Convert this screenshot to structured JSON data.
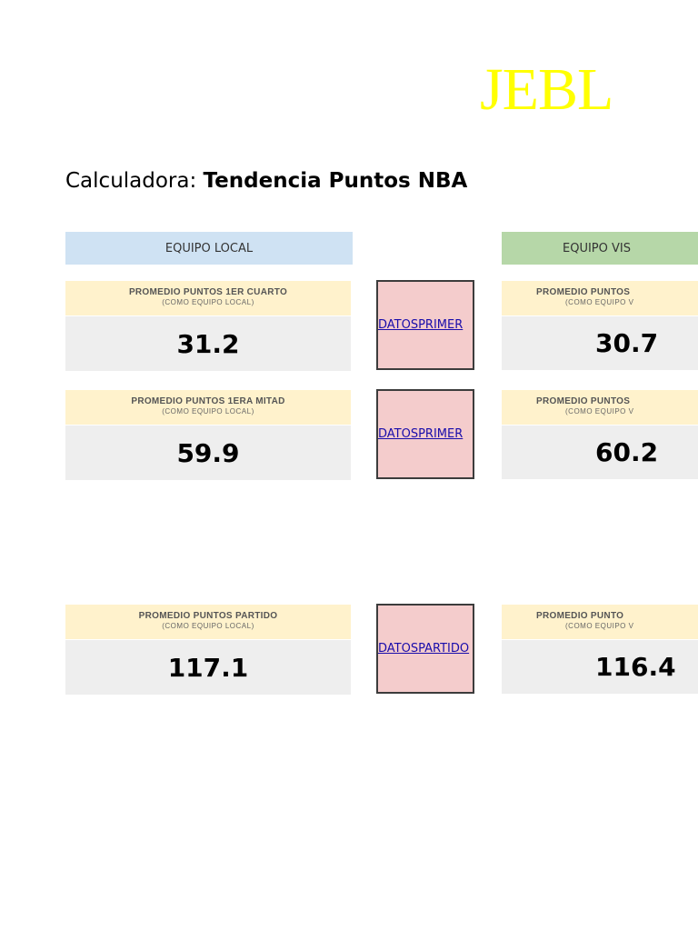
{
  "logo": "JEBL",
  "title": {
    "prefix": "Calculadora: ",
    "bold": "Tendencia Puntos NBA"
  },
  "teams": {
    "local": "EQUIPO LOCAL",
    "visit": "EQUIPO VIS"
  },
  "rows": [
    {
      "local": {
        "label": "PROMEDIO PUNTOS 1ER CUARTO",
        "sub": "(COMO EQUIPO LOCAL)",
        "value": "31.2"
      },
      "link": "DATOSPRIMER",
      "visit": {
        "label": "PROMEDIO PUNTOS",
        "sub": "(COMO EQUIPO V",
        "value": "30.7"
      }
    },
    {
      "local": {
        "label": "PROMEDIO PUNTOS 1ERA MITAD",
        "sub": "(COMO EQUIPO LOCAL)",
        "value": "59.9"
      },
      "link": "DATOSPRIMER",
      "visit": {
        "label": "PROMEDIO PUNTOS",
        "sub": "(COMO EQUIPO V",
        "value": "60.2"
      }
    },
    {
      "local": {
        "label": "PROMEDIO PUNTOS PARTIDO",
        "sub": "(COMO EQUIPO LOCAL)",
        "value": "117.1"
      },
      "link": "DATOSPARTIDO",
      "visit": {
        "label": "PROMEDIO PUNTO",
        "sub": "(COMO EQUIPO V",
        "value": "116.4"
      }
    }
  ]
}
